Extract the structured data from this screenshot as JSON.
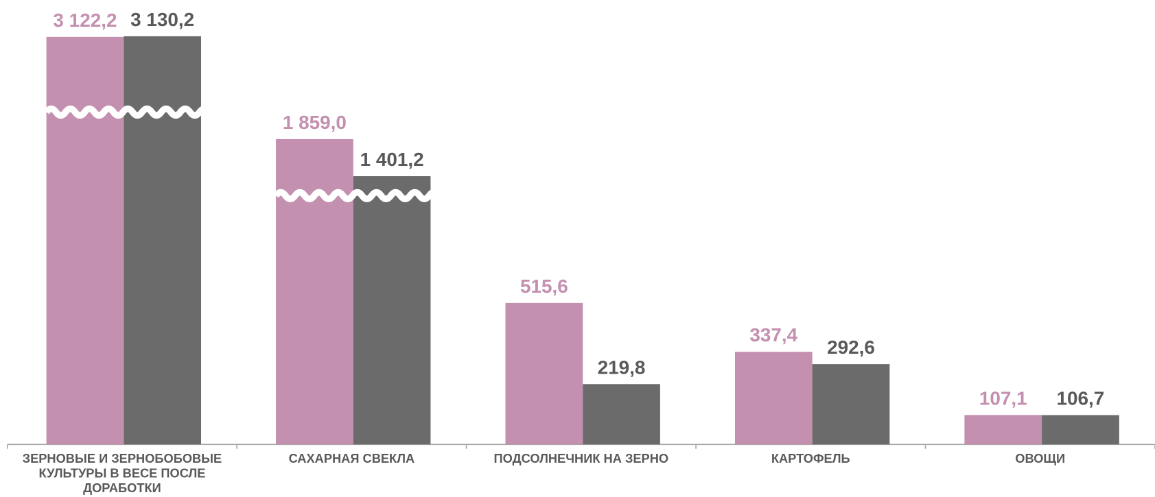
{
  "chart_data": {
    "type": "bar",
    "categories": [
      "ЗЕРНОВЫЕ И ЗЕРНОБОБОВЫЕ КУЛЬТУРЫ В ВЕСЕ ПОСЛЕ ДОРАБОТКИ",
      "САХАРНАЯ СВЕКЛА",
      "ПОДСОЛНЕЧНИК НА ЗЕРНО",
      "КАРТОФЕЛЬ",
      "ОВОЩИ"
    ],
    "series": [
      {
        "color": "#c490b0",
        "values": [
          3122.2,
          1859.0,
          515.6,
          337.4,
          107.1
        ],
        "value_labels": [
          "3 122,2",
          "1 859,0",
          "515,6",
          "337,4",
          "107,1"
        ]
      },
      {
        "color": "#6b6b6b",
        "values": [
          3130.2,
          1401.2,
          219.8,
          292.6,
          106.7
        ],
        "value_labels": [
          "3 130,2",
          "1 401,2",
          "219,8",
          "292,6",
          "106,7"
        ]
      }
    ],
    "axis_break": true
  }
}
